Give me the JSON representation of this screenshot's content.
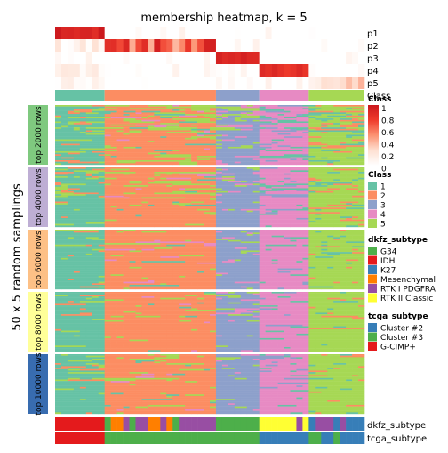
{
  "chart_data": {
    "type": "heatmap",
    "title": "membership heatmap, k = 5",
    "ylabel": "50 x 5 random samplings",
    "membership_rows": [
      "p1",
      "p2",
      "p3",
      "p4",
      "p5"
    ],
    "class_row_label": "Class",
    "membership_legend": {
      "title": "Class",
      "ticks": [
        "1",
        "0.8",
        "0.6",
        "0.4",
        "0.2",
        "0"
      ],
      "range": [
        0,
        1
      ],
      "colors": [
        "#ffffff",
        "#fee0d2",
        "#fc9272",
        "#ef3b2c",
        "#cb181d"
      ]
    },
    "class_legend": {
      "title": "Class",
      "items": [
        {
          "label": "1",
          "color": "#66c2a5"
        },
        {
          "label": "2",
          "color": "#fc8d62"
        },
        {
          "label": "3",
          "color": "#8da0cb"
        },
        {
          "label": "4",
          "color": "#e78ac3"
        },
        {
          "label": "5",
          "color": "#a6d854"
        }
      ]
    },
    "dkfz_legend": {
      "title": "dkfz_subtype",
      "items": [
        {
          "label": "G34",
          "color": "#4daf4a"
        },
        {
          "label": "IDH",
          "color": "#e41a1c"
        },
        {
          "label": "K27",
          "color": "#377eb8"
        },
        {
          "label": "Mesenchymal",
          "color": "#ff7f00"
        },
        {
          "label": "RTK I PDGFRA",
          "color": "#984ea3"
        },
        {
          "label": "RTK II Classic",
          "color": "#ffff33"
        }
      ]
    },
    "tcga_legend": {
      "title": "tcga_subtype",
      "items": [
        {
          "label": "Cluster #2",
          "color": "#377eb8"
        },
        {
          "label": "Cluster #3",
          "color": "#4daf4a"
        },
        {
          "label": "G-CIMP+",
          "color": "#e41a1c"
        }
      ]
    },
    "sample_groups": [
      {
        "class": 1,
        "n": 8
      },
      {
        "class": 2,
        "n": 18
      },
      {
        "class": 3,
        "n": 7
      },
      {
        "class": 4,
        "n": 8
      },
      {
        "class": 5,
        "n": 9
      }
    ],
    "panels": [
      {
        "label": "top 2000 rows",
        "color": "#7fc97f"
      },
      {
        "label": "top 4000 rows",
        "color": "#beaed4"
      },
      {
        "label": "top 6000 rows",
        "color": "#fdc086"
      },
      {
        "label": "top 8000 rows",
        "color": "#ffff99"
      },
      {
        "label": "top 10000 rows",
        "color": "#386cb0"
      }
    ],
    "bottom_annotations": [
      "dkfz_subtype",
      "tcga_subtype"
    ]
  }
}
